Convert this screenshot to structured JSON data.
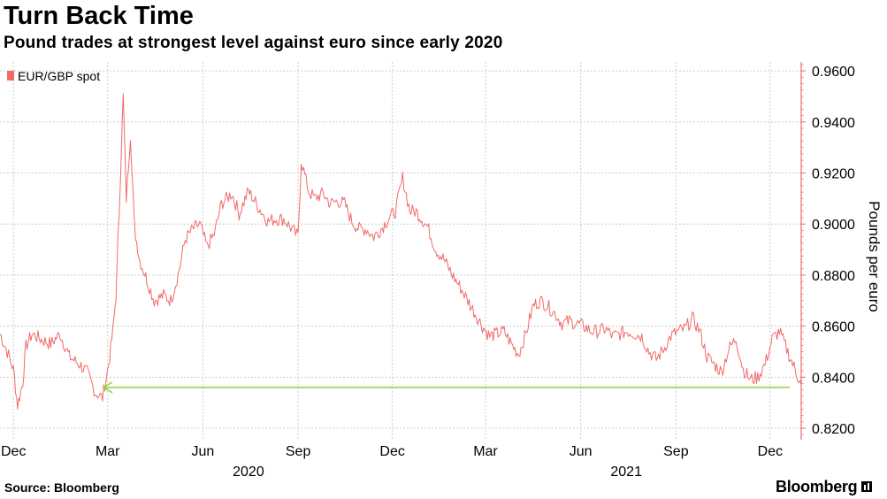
{
  "header": {
    "title": "Turn Back Time",
    "subtitle": "Pound trades at strongest level against euro since early 2020"
  },
  "footer": {
    "source": "Source: Bloomberg",
    "brand": "Bloomberg"
  },
  "colors": {
    "series": "#f06a6a",
    "axis": "#f06a6a",
    "arrow": "#8bd43a",
    "grid": "#cccccc"
  },
  "chart_data": {
    "type": "line",
    "title": "Turn Back Time",
    "subtitle": "Pound trades at strongest level against euro since early 2020",
    "ylabel": "Pounds per euro",
    "ylim": [
      0.8155,
      0.9635
    ],
    "yticks": [
      0.82,
      0.84,
      0.86,
      0.88,
      0.9,
      0.92,
      0.94,
      0.96
    ],
    "ytick_labels": [
      "0.8200",
      "0.8400",
      "0.8600",
      "0.8800",
      "0.9000",
      "0.9200",
      "0.9400",
      "0.9600"
    ],
    "xlim": [
      "2019-11-18",
      "2021-12-31"
    ],
    "xticks": [
      {
        "date": "2019-12-01",
        "label": "Dec"
      },
      {
        "date": "2020-03-01",
        "label": "Mar"
      },
      {
        "date": "2020-06-01",
        "label": "Jun"
      },
      {
        "date": "2020-09-01",
        "label": "Sep"
      },
      {
        "date": "2020-12-01",
        "label": "Dec"
      },
      {
        "date": "2021-03-01",
        "label": "Mar"
      },
      {
        "date": "2021-06-01",
        "label": "Jun"
      },
      {
        "date": "2021-09-01",
        "label": "Sep"
      },
      {
        "date": "2021-12-01",
        "label": "Dec"
      }
    ],
    "year_labels": [
      {
        "date": "2020-07-15",
        "label": "2020"
      },
      {
        "date": "2021-07-15",
        "label": "2021"
      }
    ],
    "grid": true,
    "legend": "top-left",
    "y_axis_side": "right",
    "series": [
      {
        "name": "EUR/GBP spot",
        "x": [
          "2019-11-18",
          "2019-11-25",
          "2019-12-01",
          "2019-12-05",
          "2019-12-10",
          "2019-12-13",
          "2019-12-19",
          "2019-12-27",
          "2020-01-06",
          "2020-01-15",
          "2020-01-24",
          "2020-02-03",
          "2020-02-10",
          "2020-02-18",
          "2020-02-25",
          "2020-03-02",
          "2020-03-06",
          "2020-03-09",
          "2020-03-12",
          "2020-03-16",
          "2020-03-19",
          "2020-03-23",
          "2020-03-27",
          "2020-04-01",
          "2020-04-08",
          "2020-04-15",
          "2020-04-24",
          "2020-05-01",
          "2020-05-08",
          "2020-05-15",
          "2020-05-22",
          "2020-05-29",
          "2020-06-05",
          "2020-06-12",
          "2020-06-19",
          "2020-06-29",
          "2020-07-06",
          "2020-07-15",
          "2020-07-24",
          "2020-08-03",
          "2020-08-10",
          "2020-08-18",
          "2020-08-26",
          "2020-09-01",
          "2020-09-04",
          "2020-09-11",
          "2020-09-17",
          "2020-09-25",
          "2020-10-02",
          "2020-10-09",
          "2020-10-16",
          "2020-10-23",
          "2020-10-30",
          "2020-11-06",
          "2020-11-13",
          "2020-11-20",
          "2020-11-27",
          "2020-12-04",
          "2020-12-11",
          "2020-12-18",
          "2020-12-24",
          "2021-01-04",
          "2021-01-12",
          "2021-01-20",
          "2021-01-28",
          "2021-02-05",
          "2021-02-12",
          "2021-02-19",
          "2021-02-26",
          "2021-03-05",
          "2021-03-12",
          "2021-03-19",
          "2021-03-26",
          "2021-04-02",
          "2021-04-09",
          "2021-04-16",
          "2021-04-23",
          "2021-04-30",
          "2021-05-07",
          "2021-05-14",
          "2021-05-21",
          "2021-05-28",
          "2021-06-04",
          "2021-06-11",
          "2021-06-18",
          "2021-06-25",
          "2021-07-02",
          "2021-07-09",
          "2021-07-16",
          "2021-07-23",
          "2021-07-30",
          "2021-08-06",
          "2021-08-13",
          "2021-08-20",
          "2021-08-27",
          "2021-09-03",
          "2021-09-10",
          "2021-09-17",
          "2021-09-24",
          "2021-10-01",
          "2021-10-08",
          "2021-10-15",
          "2021-10-22",
          "2021-10-29",
          "2021-11-05",
          "2021-11-12",
          "2021-11-19",
          "2021-11-26",
          "2021-12-03",
          "2021-12-10",
          "2021-12-17",
          "2021-12-24",
          "2021-12-28",
          "2021-12-31"
        ],
        "values": [
          0.857,
          0.85,
          0.843,
          0.829,
          0.838,
          0.852,
          0.857,
          0.855,
          0.853,
          0.857,
          0.848,
          0.845,
          0.842,
          0.834,
          0.832,
          0.845,
          0.858,
          0.872,
          0.904,
          0.95,
          0.91,
          0.935,
          0.898,
          0.886,
          0.878,
          0.87,
          0.872,
          0.87,
          0.88,
          0.894,
          0.898,
          0.9,
          0.891,
          0.896,
          0.908,
          0.912,
          0.904,
          0.913,
          0.907,
          0.901,
          0.902,
          0.902,
          0.898,
          0.895,
          0.925,
          0.913,
          0.91,
          0.912,
          0.908,
          0.909,
          0.908,
          0.901,
          0.898,
          0.898,
          0.895,
          0.898,
          0.902,
          0.905,
          0.918,
          0.905,
          0.905,
          0.899,
          0.89,
          0.886,
          0.88,
          0.875,
          0.87,
          0.865,
          0.86,
          0.856,
          0.857,
          0.858,
          0.853,
          0.849,
          0.857,
          0.868,
          0.87,
          0.868,
          0.865,
          0.861,
          0.862,
          0.861,
          0.86,
          0.858,
          0.858,
          0.859,
          0.856,
          0.857,
          0.858,
          0.857,
          0.856,
          0.85,
          0.847,
          0.851,
          0.856,
          0.858,
          0.859,
          0.863,
          0.858,
          0.848,
          0.845,
          0.842,
          0.851,
          0.855,
          0.843,
          0.839,
          0.84,
          0.845,
          0.855,
          0.858,
          0.851,
          0.844,
          0.84,
          0.837
        ]
      }
    ],
    "annotations": [
      {
        "type": "arrow",
        "y": 0.836,
        "from": "2021-12-20",
        "to": "2020-02-26"
      }
    ]
  }
}
